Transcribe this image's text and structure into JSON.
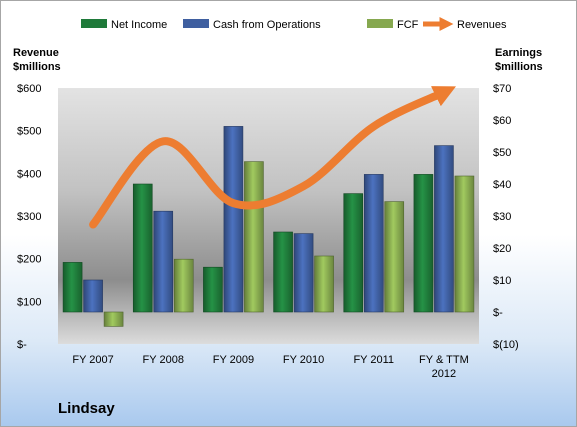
{
  "chart_data": {
    "type": "bar",
    "company": "Lindsay",
    "left_axis_label": [
      "Revenue",
      "$millions"
    ],
    "right_axis_label": [
      "Earnings",
      "$millions"
    ],
    "categories": [
      "FY 2007",
      "FY 2008",
      "FY 2009",
      "FY 2010",
      "FY 2011",
      "FY & TTM|2012"
    ],
    "left_ticks": [
      "$-",
      "$100",
      "$200",
      "$300",
      "$400",
      "$500",
      "$600"
    ],
    "right_ticks": [
      "$(10)",
      "$-",
      "$10",
      "$20",
      "$30",
      "$40",
      "$50",
      "$60",
      "$70"
    ],
    "left_ylim": [
      0,
      600
    ],
    "right_ylim": [
      -10,
      70
    ],
    "series": [
      {
        "name": "Net Income",
        "type": "bar",
        "axis": "right",
        "color": "#1f7a3a",
        "values": [
          15.5,
          40,
          14,
          25,
          37,
          43
        ]
      },
      {
        "name": "Cash from Operations",
        "type": "bar",
        "axis": "right",
        "color": "#3f5fa0",
        "values": [
          10,
          31.5,
          58,
          24.5,
          43,
          52
        ]
      },
      {
        "name": "FCF",
        "type": "bar",
        "axis": "right",
        "color": "#86a84f",
        "values": [
          -4.5,
          16.5,
          47,
          17.5,
          34.5,
          42.5
        ]
      },
      {
        "name": "Revenues",
        "type": "line",
        "axis": "left",
        "color": "#ed7d31",
        "values": [
          280,
          475,
          330,
          370,
          510,
          590
        ]
      }
    ],
    "legend_position": "top",
    "grid": false
  }
}
